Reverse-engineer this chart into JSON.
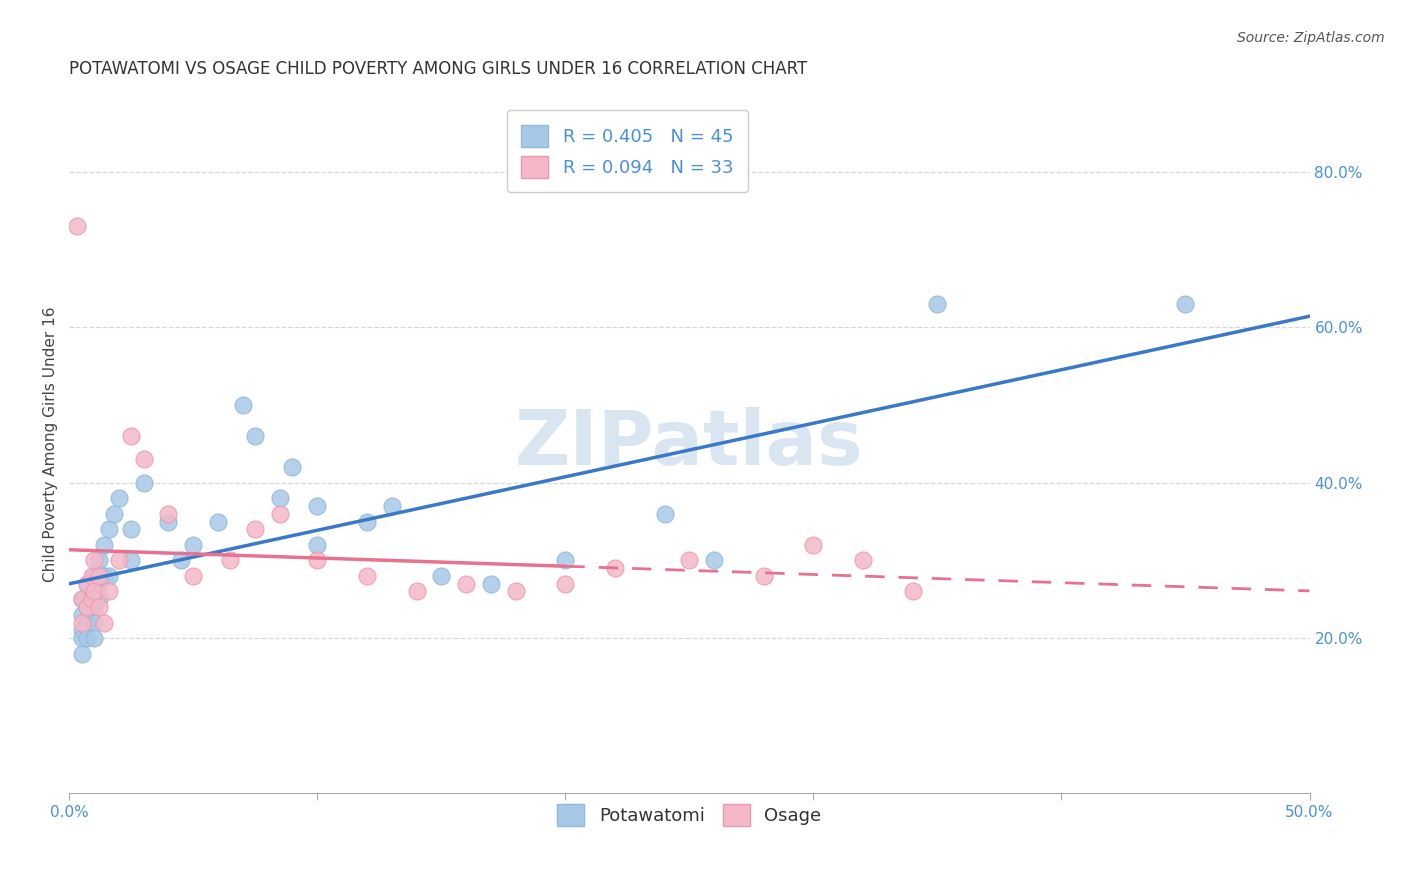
{
  "title": "POTAWATOMI VS OSAGE CHILD POVERTY AMONG GIRLS UNDER 16 CORRELATION CHART",
  "source": "Source: ZipAtlas.com",
  "ylabel": "Child Poverty Among Girls Under 16",
  "xlim": [
    0.0,
    0.5
  ],
  "ylim": [
    0.0,
    0.9
  ],
  "xticks": [
    0.0,
    0.1,
    0.2,
    0.3,
    0.4,
    0.5
  ],
  "xticklabels": [
    "0.0%",
    "",
    "",
    "",
    "",
    "50.0%"
  ],
  "yticks_right": [
    0.2,
    0.4,
    0.6,
    0.8
  ],
  "ytick_right_labels": [
    "20.0%",
    "40.0%",
    "60.0%",
    "80.0%"
  ],
  "background_color": "#ffffff",
  "watermark": "ZIPatlas",
  "legend_R1": "R = 0.405",
  "legend_N1": "N = 45",
  "legend_R2": "R = 0.094",
  "legend_N2": "N = 33",
  "potawatomi_color": "#a8c8e8",
  "osage_color": "#f4b8c8",
  "potawatomi_line_color": "#3a78c8",
  "osage_line_color": "#e87090",
  "potawatomi_x": [
    0.005,
    0.005,
    0.005,
    0.005,
    0.005,
    0.007,
    0.007,
    0.007,
    0.007,
    0.01,
    0.01,
    0.01,
    0.01,
    0.01,
    0.012,
    0.012,
    0.012,
    0.014,
    0.014,
    0.016,
    0.016,
    0.018,
    0.02,
    0.025,
    0.025,
    0.03,
    0.04,
    0.045,
    0.05,
    0.06,
    0.07,
    0.075,
    0.085,
    0.09,
    0.1,
    0.1,
    0.12,
    0.13,
    0.15,
    0.17,
    0.2,
    0.24,
    0.26,
    0.35,
    0.45
  ],
  "potawatomi_y": [
    0.25,
    0.23,
    0.21,
    0.2,
    0.18,
    0.27,
    0.24,
    0.22,
    0.2,
    0.28,
    0.26,
    0.24,
    0.22,
    0.2,
    0.3,
    0.27,
    0.25,
    0.32,
    0.28,
    0.34,
    0.28,
    0.36,
    0.38,
    0.34,
    0.3,
    0.4,
    0.35,
    0.3,
    0.32,
    0.35,
    0.5,
    0.46,
    0.38,
    0.42,
    0.37,
    0.32,
    0.35,
    0.37,
    0.28,
    0.27,
    0.3,
    0.36,
    0.3,
    0.63,
    0.63
  ],
  "osage_x": [
    0.003,
    0.005,
    0.005,
    0.007,
    0.007,
    0.009,
    0.009,
    0.01,
    0.01,
    0.012,
    0.012,
    0.014,
    0.016,
    0.02,
    0.025,
    0.03,
    0.04,
    0.05,
    0.065,
    0.075,
    0.085,
    0.1,
    0.12,
    0.14,
    0.16,
    0.18,
    0.2,
    0.22,
    0.25,
    0.28,
    0.3,
    0.32,
    0.34
  ],
  "osage_y": [
    0.73,
    0.25,
    0.22,
    0.27,
    0.24,
    0.28,
    0.25,
    0.3,
    0.26,
    0.28,
    0.24,
    0.22,
    0.26,
    0.3,
    0.46,
    0.43,
    0.36,
    0.28,
    0.3,
    0.34,
    0.36,
    0.3,
    0.28,
    0.26,
    0.27,
    0.26,
    0.27,
    0.29,
    0.3,
    0.28,
    0.32,
    0.3,
    0.26
  ],
  "title_fontsize": 12,
  "source_fontsize": 10,
  "axis_label_fontsize": 11,
  "tick_fontsize": 11,
  "legend_fontsize": 13,
  "watermark_fontsize": 55,
  "watermark_color": "#c0d4e8",
  "watermark_alpha": 0.6,
  "grid_color": "#d8d8d8"
}
